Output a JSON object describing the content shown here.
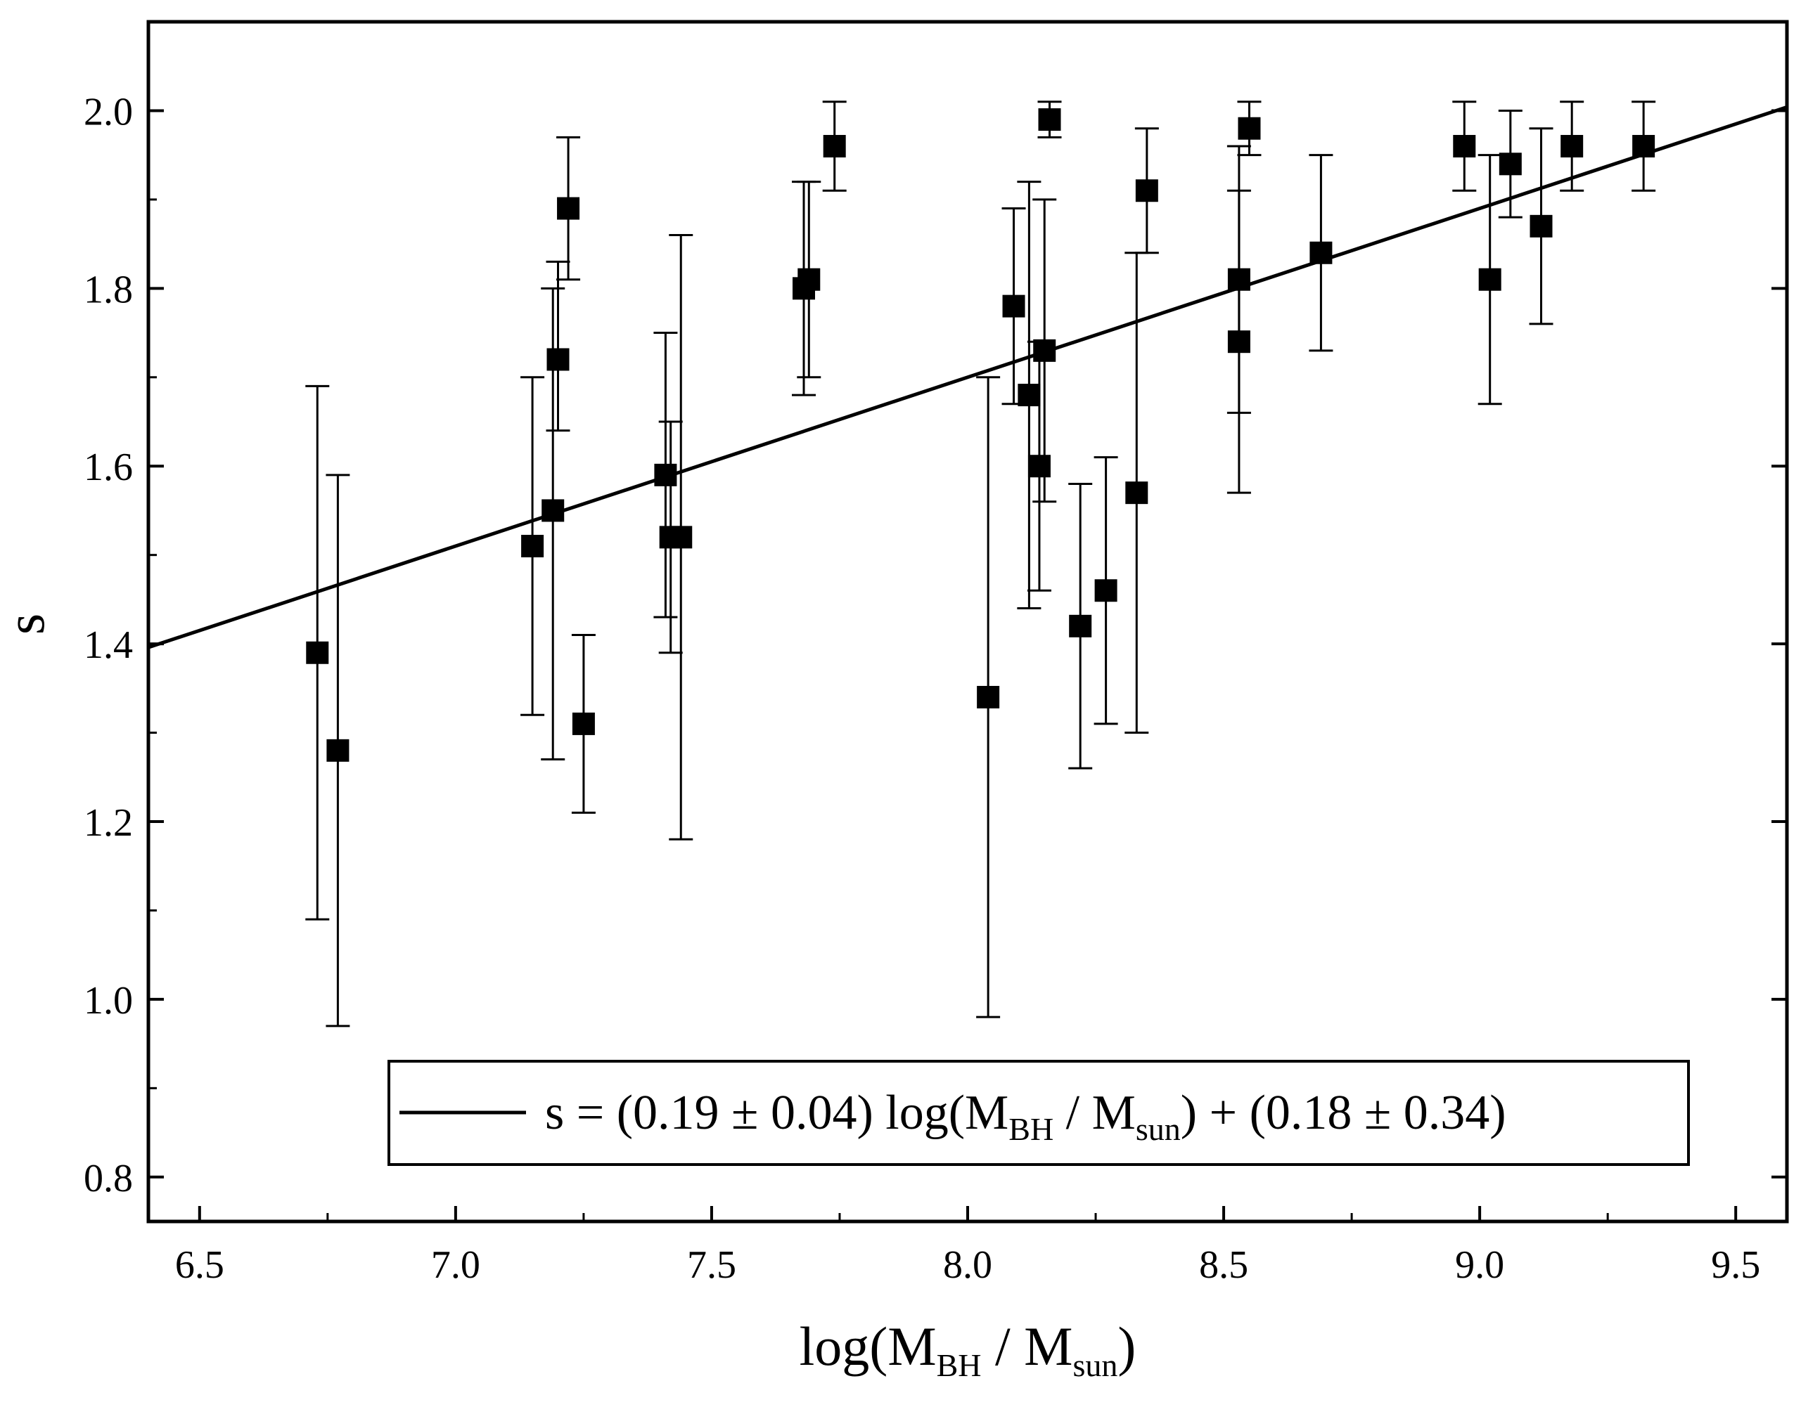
{
  "chart_data": {
    "type": "scatter",
    "title": "",
    "xlabel": {
      "pre": "log(M",
      "sub1": "BH",
      "mid": " / M",
      "sub2": "sun",
      "post": ")"
    },
    "ylabel": "s",
    "xlim": [
      6.4,
      9.6
    ],
    "ylim": [
      0.75,
      2.1
    ],
    "xticks": [
      6.5,
      7.0,
      7.5,
      8.0,
      8.5,
      9.0,
      9.5
    ],
    "xtick_labels": [
      "6.5",
      "7.0",
      "7.5",
      "8.0",
      "8.5",
      "9.0",
      "9.5"
    ],
    "yticks": [
      0.8,
      1.0,
      1.2,
      1.4,
      1.6,
      1.8,
      2.0
    ],
    "ytick_labels": [
      "0.8",
      "1.0",
      "1.2",
      "1.4",
      "1.6",
      "1.8",
      "2.0"
    ],
    "grid": false,
    "legend": {
      "position": "bottom-right",
      "pre": "s = (0.19 ± 0.04) log(M",
      "sub1": "BH",
      "mid": " / M",
      "sub2": "sun",
      "post": ") + (0.18 ± 0.34)"
    },
    "fit_line": {
      "slope": 0.19,
      "intercept": 0.18,
      "x_range": [
        6.4,
        9.6
      ]
    },
    "points": [
      {
        "x": 6.73,
        "y": 1.39,
        "lo": 1.09,
        "hi": 1.69
      },
      {
        "x": 6.77,
        "y": 1.28,
        "lo": 0.97,
        "hi": 1.59
      },
      {
        "x": 7.15,
        "y": 1.51,
        "lo": 1.32,
        "hi": 1.7
      },
      {
        "x": 7.19,
        "y": 1.55,
        "lo": 1.27,
        "hi": 1.8
      },
      {
        "x": 7.2,
        "y": 1.72,
        "lo": 1.64,
        "hi": 1.83
      },
      {
        "x": 7.22,
        "y": 1.89,
        "lo": 1.81,
        "hi": 1.97
      },
      {
        "x": 7.25,
        "y": 1.31,
        "lo": 1.21,
        "hi": 1.41
      },
      {
        "x": 7.41,
        "y": 1.59,
        "lo": 1.43,
        "hi": 1.75
      },
      {
        "x": 7.42,
        "y": 1.52,
        "lo": 1.39,
        "hi": 1.65
      },
      {
        "x": 7.44,
        "y": 1.52,
        "lo": 1.18,
        "hi": 1.86
      },
      {
        "x": 7.68,
        "y": 1.8,
        "lo": 1.68,
        "hi": 1.92
      },
      {
        "x": 7.69,
        "y": 1.81,
        "lo": 1.7,
        "hi": 1.92
      },
      {
        "x": 7.74,
        "y": 1.96,
        "lo": 1.91,
        "hi": 2.01
      },
      {
        "x": 8.04,
        "y": 1.34,
        "lo": 0.98,
        "hi": 1.7
      },
      {
        "x": 8.09,
        "y": 1.78,
        "lo": 1.67,
        "hi": 1.89
      },
      {
        "x": 8.12,
        "y": 1.68,
        "lo": 1.44,
        "hi": 1.92
      },
      {
        "x": 8.14,
        "y": 1.6,
        "lo": 1.46,
        "hi": 1.74
      },
      {
        "x": 8.15,
        "y": 1.73,
        "lo": 1.56,
        "hi": 1.9
      },
      {
        "x": 8.16,
        "y": 1.99,
        "lo": 1.97,
        "hi": 2.01
      },
      {
        "x": 8.22,
        "y": 1.42,
        "lo": 1.26,
        "hi": 1.58
      },
      {
        "x": 8.27,
        "y": 1.46,
        "lo": 1.31,
        "hi": 1.61
      },
      {
        "x": 8.33,
        "y": 1.57,
        "lo": 1.3,
        "hi": 1.84
      },
      {
        "x": 8.35,
        "y": 1.91,
        "lo": 1.84,
        "hi": 1.98
      },
      {
        "x": 8.53,
        "y": 1.81,
        "lo": 1.66,
        "hi": 1.96
      },
      {
        "x": 8.53,
        "y": 1.74,
        "lo": 1.57,
        "hi": 1.91
      },
      {
        "x": 8.55,
        "y": 1.98,
        "lo": 1.95,
        "hi": 2.01
      },
      {
        "x": 8.69,
        "y": 1.84,
        "lo": 1.73,
        "hi": 1.95
      },
      {
        "x": 8.97,
        "y": 1.96,
        "lo": 1.91,
        "hi": 2.01
      },
      {
        "x": 9.02,
        "y": 1.81,
        "lo": 1.67,
        "hi": 1.95
      },
      {
        "x": 9.06,
        "y": 1.94,
        "lo": 1.88,
        "hi": 2.0
      },
      {
        "x": 9.12,
        "y": 1.87,
        "lo": 1.76,
        "hi": 1.98
      },
      {
        "x": 9.18,
        "y": 1.96,
        "lo": 1.91,
        "hi": 2.01
      },
      {
        "x": 9.32,
        "y": 1.96,
        "lo": 1.91,
        "hi": 2.01
      }
    ]
  }
}
